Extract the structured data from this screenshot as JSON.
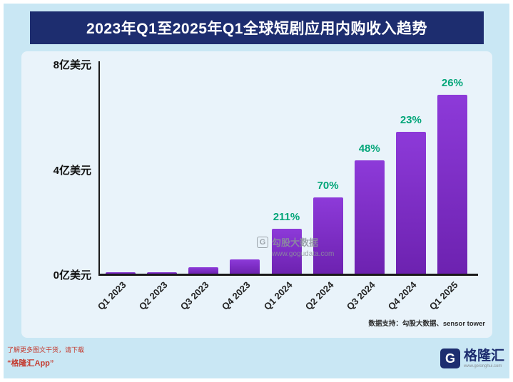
{
  "header": {
    "title": "2023年Q1至2025年Q1全球短剧应用内购收入趋势"
  },
  "chart_data": {
    "type": "bar",
    "title": "2023年Q1至2025年Q1全球短剧应用内购收入趋势",
    "categories": [
      "Q1 2023",
      "Q2 2023",
      "Q3 2023",
      "Q4 2023",
      "Q1 2024",
      "Q2 2024",
      "Q3 2024",
      "Q4 2024",
      "Q1 2025"
    ],
    "values": [
      0.03,
      0.06,
      0.25,
      0.55,
      1.7,
      2.9,
      4.3,
      5.4,
      6.8
    ],
    "growth_labels": [
      "",
      "",
      "",
      "",
      "211%",
      "70%",
      "48%",
      "23%",
      "26%"
    ],
    "ylabel": "亿美元",
    "ylim": [
      0,
      8
    ],
    "yticks": [
      {
        "value": 0,
        "label": "0亿美元"
      },
      {
        "value": 4,
        "label": "4亿美元"
      },
      {
        "value": 8,
        "label": "8亿美元"
      }
    ],
    "grid": false,
    "legend": "none",
    "bar_color": "#7c2fc6",
    "growth_label_color": "#00a578",
    "title_bg_color": "#1d2d6f",
    "background_color": "#c9e7f4"
  },
  "watermark": {
    "icon": "G",
    "text": "勾股大数据",
    "url": "www.gogudata.com"
  },
  "footnote": "数据支持：勾股大数据、sensor tower",
  "footer": {
    "promo_line1": "了解更多图文干货，请下载",
    "promo_line2": "“格隆汇App”",
    "logo_icon": "G",
    "logo_text": "格隆汇",
    "logo_sub": "www.gelonghui.com"
  }
}
